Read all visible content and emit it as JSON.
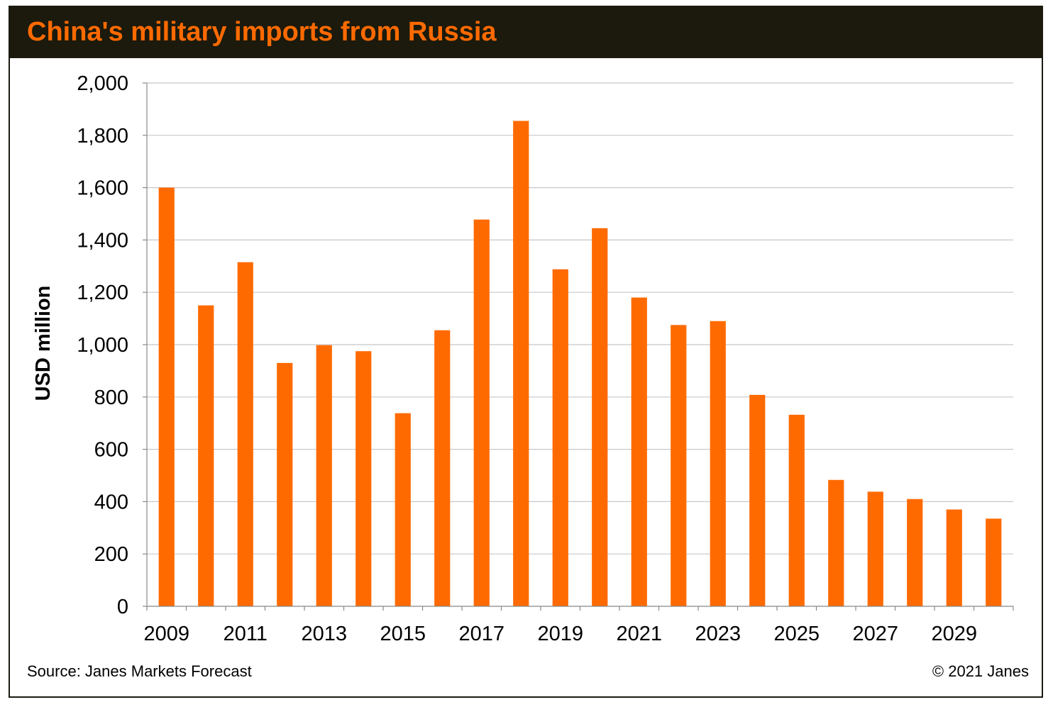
{
  "header": {
    "title": "China's military imports from Russia"
  },
  "footer": {
    "source": "Source: Janes Markets Forecast",
    "copyright": "© 2021 Janes"
  },
  "colors": {
    "bar": "#ff6a00",
    "title_text": "#ff6a00",
    "title_background": "#1b1a0c",
    "grid": "#c8c8c8"
  },
  "chart_data": {
    "type": "bar",
    "title": "China's military imports from Russia",
    "xlabel": "",
    "ylabel": "USD million",
    "ylim": [
      0,
      2000
    ],
    "yticks": [
      0,
      200,
      400,
      600,
      800,
      1000,
      1200,
      1400,
      1600,
      1800,
      2000
    ],
    "ytick_labels": [
      "0",
      "200",
      "400",
      "600",
      "800",
      "1,000",
      "1,200",
      "1,400",
      "1,600",
      "1,800",
      "2,000"
    ],
    "categories": [
      "2009",
      "2010",
      "2011",
      "2012",
      "2013",
      "2014",
      "2015",
      "2016",
      "2017",
      "2018",
      "2019",
      "2020",
      "2021",
      "2022",
      "2023",
      "2024",
      "2025",
      "2026",
      "2027",
      "2028",
      "2029",
      "2030"
    ],
    "xtick_labels": [
      "2009",
      "2011",
      "2013",
      "2015",
      "2017",
      "2019",
      "2021",
      "2023",
      "2025",
      "2027",
      "2029"
    ],
    "values": [
      1600,
      1150,
      1315,
      930,
      998,
      975,
      738,
      1055,
      1478,
      1855,
      1288,
      1445,
      1180,
      1075,
      1090,
      808,
      732,
      483,
      438,
      410,
      370,
      335
    ],
    "grid": true,
    "legend": "none"
  }
}
